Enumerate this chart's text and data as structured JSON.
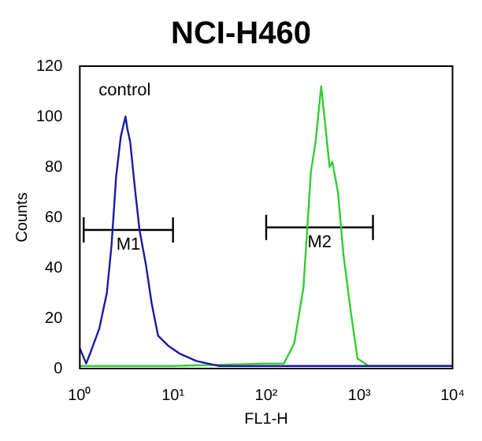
{
  "chart_data": {
    "type": "line",
    "title": "NCI-H460",
    "xlabel": "FL1-H",
    "ylabel": "Counts",
    "log": "x",
    "grid": false,
    "legend": false,
    "marker": "none",
    "xlim": [
      1,
      10000
    ],
    "xticks": [
      {
        "value": 1,
        "label": "10⁰"
      },
      {
        "value": 10,
        "label": "10¹"
      },
      {
        "value": 100,
        "label": "10²"
      },
      {
        "value": 1000,
        "label": "10³"
      },
      {
        "value": 10000,
        "label": "10⁴"
      }
    ],
    "ylim": [
      0,
      120
    ],
    "yticks": [
      0,
      20,
      40,
      60,
      80,
      100,
      120
    ],
    "annotations": [
      "control"
    ],
    "series": [
      {
        "color": "#1a1aa0",
        "x": [
          1,
          1.17,
          1.29,
          1.62,
          1.95,
          2.19,
          2.45,
          2.75,
          3.09,
          3.24,
          3.47,
          3.89,
          4.37,
          5.13,
          5.89,
          6.92,
          8.91,
          11.7,
          17.8,
          31.6,
          70.8,
          200,
          1000,
          10000
        ],
        "values": [
          8,
          2,
          6,
          16,
          30,
          49,
          76,
          92,
          100,
          95,
          90,
          72,
          55,
          41,
          26,
          13,
          9,
          6,
          3,
          1,
          1,
          1,
          1,
          1
        ]
      },
      {
        "color": "#33cc33",
        "x": [
          1,
          10,
          100,
          155,
          200,
          251,
          302,
          339,
          389,
          427,
          479,
          513,
          589,
          676,
          813,
          955,
          1259,
          10000
        ],
        "values": [
          1,
          1,
          2,
          2,
          10,
          32,
          78,
          90,
          112,
          98,
          80,
          82,
          70,
          45,
          22,
          4,
          1,
          1
        ]
      },
      {
        "type": "line",
        "name": "M1",
        "color": "#000000",
        "x": [
          1.1,
          10
        ],
        "values": [
          55,
          55
        ],
        "errors": [
          5,
          5
        ]
      },
      {
        "type": "line",
        "name": "M2",
        "color": "#000000",
        "x": [
          100,
          1400
        ],
        "values": [
          56,
          56
        ],
        "errors": [
          5,
          5
        ]
      }
    ]
  }
}
